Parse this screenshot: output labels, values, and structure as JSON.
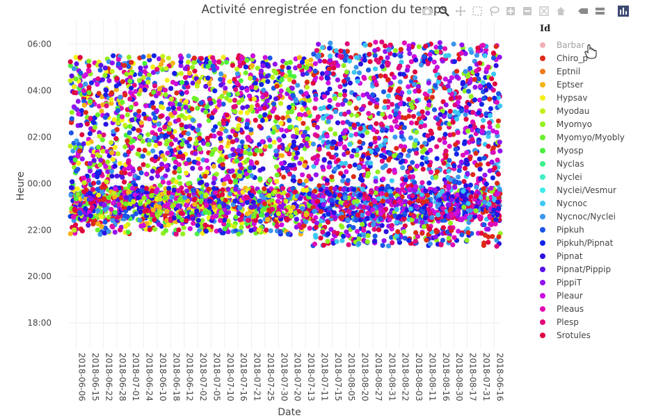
{
  "chart_data": {
    "type": "scatter",
    "title": "Activité enregistrée en fonction du temps",
    "xlabel": "Date",
    "ylabel": "Heure",
    "x_categories": [
      "2018-06-06",
      "2018-06-15",
      "2018-06-22",
      "2018-06-28",
      "2018-07-01",
      "2018-06-24",
      "2018-06-10",
      "2018-06-18",
      "2018-06-12",
      "2018-07-02",
      "2018-07-05",
      "2018-07-10",
      "2018-07-16",
      "2018-07-21",
      "2018-07-25",
      "2018-07-30",
      "2018-07-20",
      "2018-07-13",
      "2018-07-11",
      "2018-07-15",
      "2018-08-05",
      "2018-08-20",
      "2018-08-27",
      "2018-08-31",
      "2018-08-22",
      "2018-08-03",
      "2018-08-11",
      "2018-08-16",
      "2018-08-30",
      "2018-08-17",
      "2018-07-31",
      "2018-06-16"
    ],
    "y_ticks": [
      {
        "label": "18:00",
        "value": 18
      },
      {
        "label": "20:00",
        "value": 20
      },
      {
        "label": "22:00",
        "value": 22
      },
      {
        "label": "00:00",
        "value": 24
      },
      {
        "label": "02:00",
        "value": 26
      },
      {
        "label": "04:00",
        "value": 28
      },
      {
        "label": "06:00",
        "value": 30
      }
    ],
    "ylim": [
      16.9,
      31.0
    ],
    "grid": true,
    "legend_title": "Id",
    "legend_position": "right",
    "series": [
      {
        "name": "Barbar",
        "color": "#e8606e",
        "inactive": true
      },
      {
        "name": "Chiro_p",
        "color": "#dd2a16"
      },
      {
        "name": "Eptnil",
        "color": "#ee7a1c"
      },
      {
        "name": "Eptser",
        "color": "#f5b318"
      },
      {
        "name": "Hypsav",
        "color": "#f5ef18"
      },
      {
        "name": "Myodau",
        "color": "#c4f018"
      },
      {
        "name": "Myomyo",
        "color": "#92f020"
      },
      {
        "name": "Myomyo/Myobly",
        "color": "#6cf028"
      },
      {
        "name": "Myosp",
        "color": "#4af040"
      },
      {
        "name": "Nyclas",
        "color": "#3cf08a"
      },
      {
        "name": "Nyclei",
        "color": "#3cf0c4"
      },
      {
        "name": "Nyclei/Vesmur",
        "color": "#40ecea"
      },
      {
        "name": "Nycnoc",
        "color": "#3cc8f2"
      },
      {
        "name": "Nycnoc/Nyclei",
        "color": "#3c96ee"
      },
      {
        "name": "Pipkuh",
        "color": "#1c56e6"
      },
      {
        "name": "Pipkuh/Pipnat",
        "color": "#1222e6"
      },
      {
        "name": "Pipnat",
        "color": "#2a10e0"
      },
      {
        "name": "Pipnat/Pippip",
        "color": "#5812e8"
      },
      {
        "name": "PippiT",
        "color": "#9212ee"
      },
      {
        "name": "Pleaur",
        "color": "#cc0ee0"
      },
      {
        "name": "Pleaus",
        "color": "#e00cb4"
      },
      {
        "name": "Plesp",
        "color": "#e0087a"
      },
      {
        "name": "Srotules",
        "color": "#e00440"
      }
    ]
  },
  "modebar": {
    "icons": [
      "camera-icon",
      "zoom-icon",
      "pan-icon",
      "box-select-icon",
      "lasso-icon",
      "zoom-in-icon",
      "zoom-out-icon",
      "autoscale-icon",
      "reset-axes-icon",
      "spike-lines-icon",
      "compare-hover-icon",
      "plotly-logo-icon"
    ]
  }
}
